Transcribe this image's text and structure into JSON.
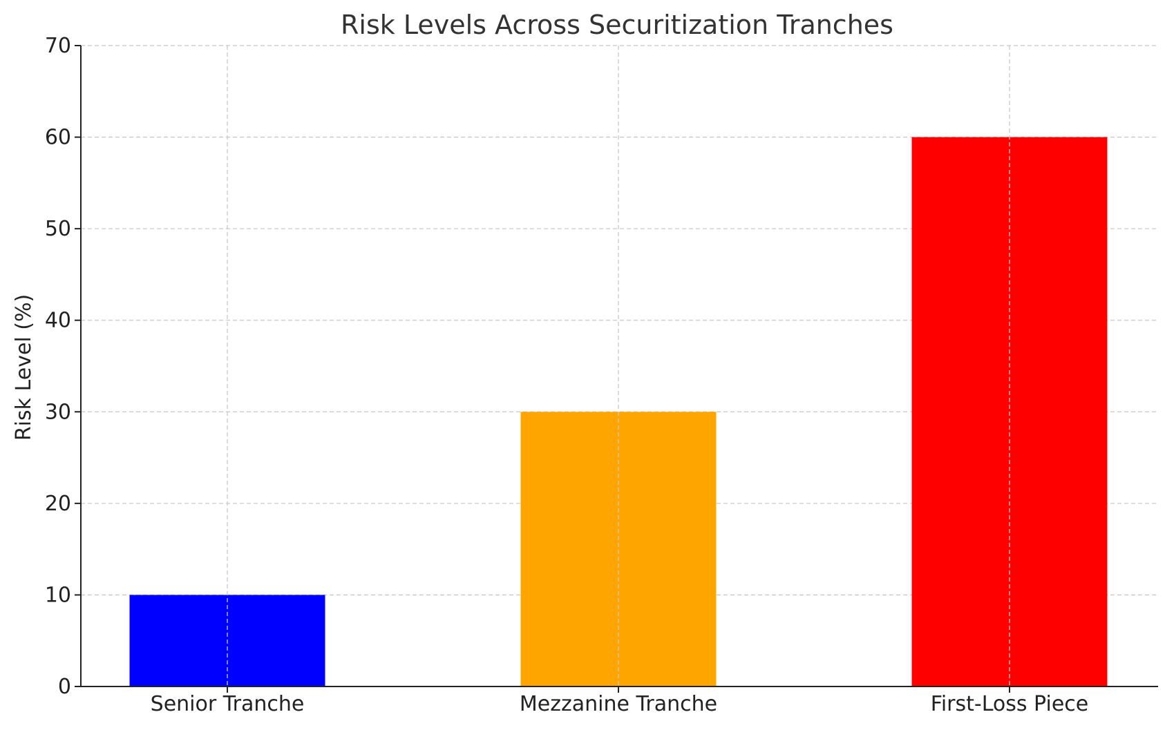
{
  "chart_data": {
    "type": "bar",
    "title": "Risk Levels Across Securitization Tranches",
    "xlabel": "",
    "ylabel": "Risk Level (%)",
    "categories": [
      "Senior Tranche",
      "Mezzanine Tranche",
      "First-Loss Piece"
    ],
    "values": [
      10,
      30,
      60
    ],
    "colors": [
      "#0000ff",
      "#ffa500",
      "#ff0000"
    ],
    "ylim": [
      0,
      70
    ],
    "yticks": [
      0,
      10,
      20,
      30,
      40,
      50,
      60,
      70
    ],
    "grid": true,
    "grid_style": "dashed",
    "legend": "none"
  }
}
